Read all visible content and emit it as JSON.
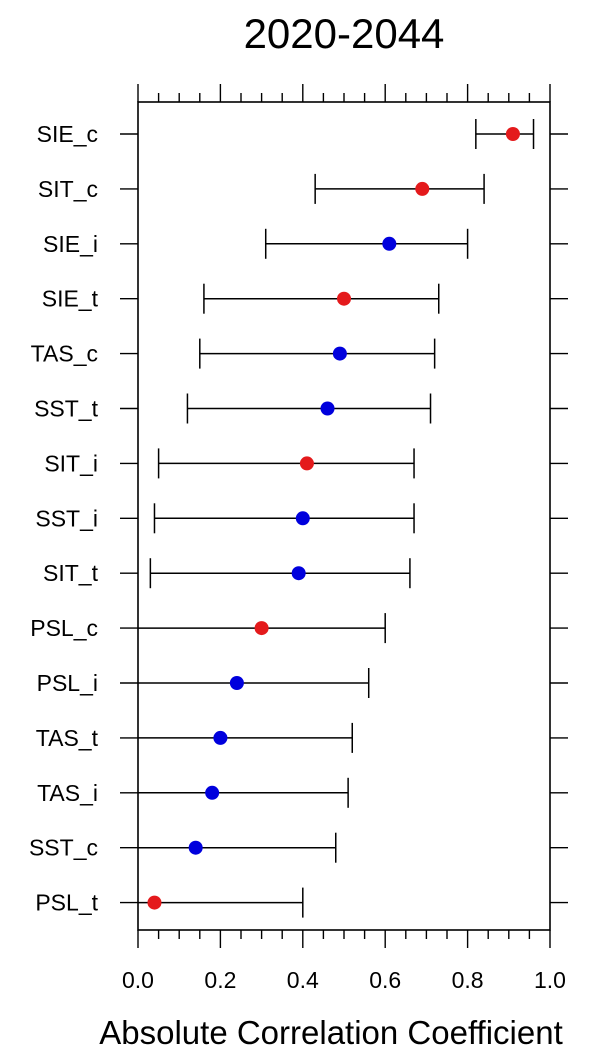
{
  "chart_data": {
    "type": "scatter",
    "title": "2020-2044",
    "xlabel": "Absolute Correlation Coefficient",
    "ylabel": "",
    "xlim": [
      0.0,
      1.0
    ],
    "xticks": [
      "0.0",
      "0.2",
      "0.4",
      "0.6",
      "0.8",
      "1.0"
    ],
    "grid": false,
    "legend": "none",
    "colors": {
      "red": "#e41a1c",
      "blue": "#0000dd",
      "axis": "#000000"
    },
    "rows": [
      {
        "label": "SIE_c",
        "value": 0.91,
        "low": 0.82,
        "high": 0.96,
        "color": "red"
      },
      {
        "label": "SIT_c",
        "value": 0.69,
        "low": 0.43,
        "high": 0.84,
        "color": "red"
      },
      {
        "label": "SIE_i",
        "value": 0.61,
        "low": 0.31,
        "high": 0.8,
        "color": "blue"
      },
      {
        "label": "SIE_t",
        "value": 0.5,
        "low": 0.16,
        "high": 0.73,
        "color": "red"
      },
      {
        "label": "TAS_c",
        "value": 0.49,
        "low": 0.15,
        "high": 0.72,
        "color": "blue"
      },
      {
        "label": "SST_t",
        "value": 0.46,
        "low": 0.12,
        "high": 0.71,
        "color": "blue"
      },
      {
        "label": "SIT_i",
        "value": 0.41,
        "low": 0.05,
        "high": 0.67,
        "color": "red"
      },
      {
        "label": "SST_i",
        "value": 0.4,
        "low": 0.04,
        "high": 0.67,
        "color": "blue"
      },
      {
        "label": "SIT_t",
        "value": 0.39,
        "low": 0.03,
        "high": 0.66,
        "color": "blue"
      },
      {
        "label": "PSL_c",
        "value": 0.3,
        "low": 0.0,
        "high": 0.6,
        "color": "red"
      },
      {
        "label": "PSL_i",
        "value": 0.24,
        "low": 0.0,
        "high": 0.56,
        "color": "blue"
      },
      {
        "label": "TAS_t",
        "value": 0.2,
        "low": 0.0,
        "high": 0.52,
        "color": "blue"
      },
      {
        "label": "TAS_i",
        "value": 0.18,
        "low": 0.0,
        "high": 0.51,
        "color": "blue"
      },
      {
        "label": "SST_c",
        "value": 0.14,
        "low": 0.0,
        "high": 0.48,
        "color": "blue"
      },
      {
        "label": "PSL_t",
        "value": 0.04,
        "low": 0.0,
        "high": 0.4,
        "color": "red"
      }
    ]
  }
}
